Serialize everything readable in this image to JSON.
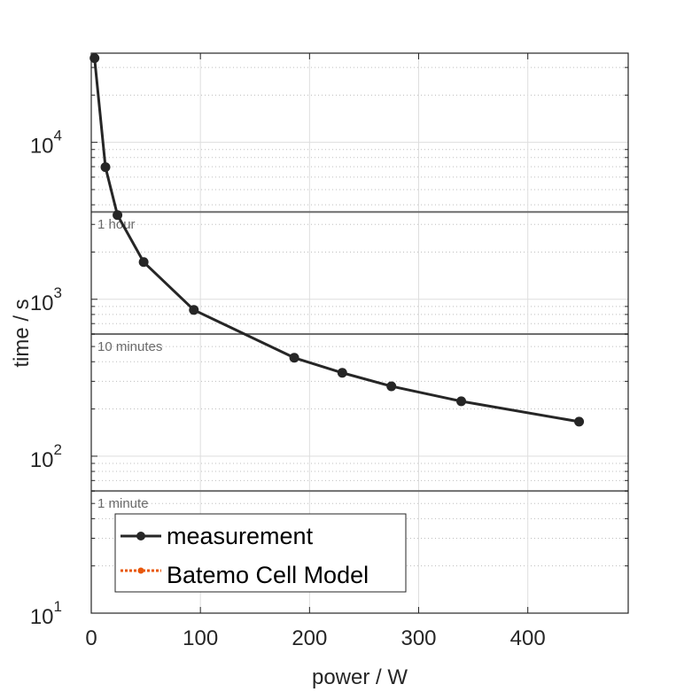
{
  "chart_data": {
    "type": "line",
    "title": "",
    "xlabel": "power / W",
    "ylabel": "time / s",
    "xlim": [
      0,
      492
    ],
    "ylim": [
      10,
      37000
    ],
    "yscale": "log",
    "grid": true,
    "xticks": [
      0,
      100,
      200,
      300,
      400
    ],
    "xtick_labels": [
      "0",
      "100",
      "200",
      "300",
      "400"
    ],
    "yticks": [
      10,
      100,
      1000,
      10000
    ],
    "ytick_labels": [
      {
        "base": "10",
        "exp": "1"
      },
      {
        "base": "10",
        "exp": "2"
      },
      {
        "base": "10",
        "exp": "3"
      },
      {
        "base": "10",
        "exp": "4"
      }
    ],
    "series": [
      {
        "name": "measurement",
        "color": "#262626",
        "style": "solid",
        "x": [
          3,
          13,
          24,
          48,
          94,
          186,
          230,
          275,
          339,
          447
        ],
        "y": [
          34400,
          6950,
          3440,
          1726,
          855,
          424,
          340,
          279,
          224,
          166
        ]
      },
      {
        "name": "Batemo Cell Model",
        "color": "#e8580c",
        "style": "dotted",
        "x": [],
        "y": []
      }
    ],
    "reference_lines": [
      {
        "y": 3600,
        "label": "1 hour"
      },
      {
        "y": 600,
        "label": "10 minutes"
      },
      {
        "y": 60,
        "label": "1 minute"
      }
    ],
    "legend_position": "bottom-left"
  }
}
